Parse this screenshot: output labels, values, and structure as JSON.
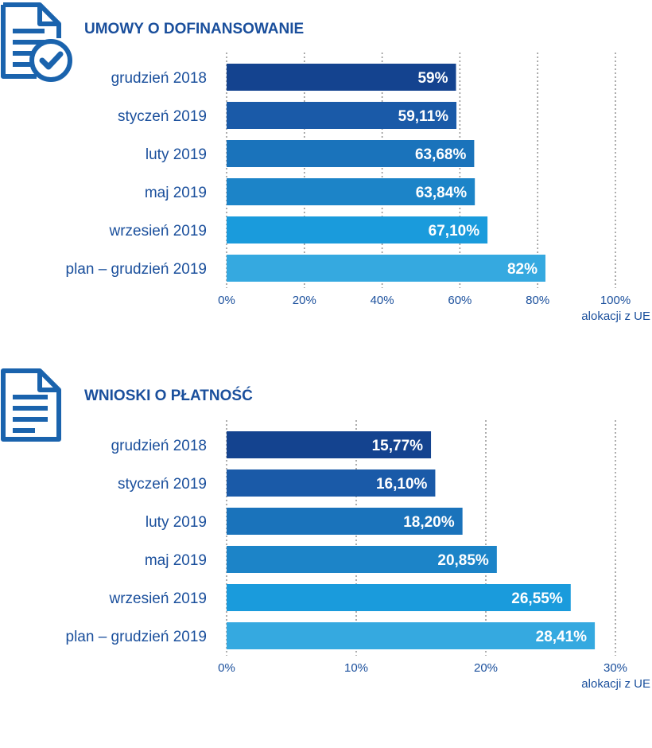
{
  "colors": {
    "title": "#1a4f9c",
    "labels": "#1a4f9c",
    "grid": "#8a8a8a",
    "bars": [
      "#14438f",
      "#1a5aa8",
      "#1a73bb",
      "#1c84c8",
      "#1a9bdc",
      "#35a9e0"
    ]
  },
  "sections": [
    {
      "title": "UMOWY O DOFINANSOWANIE",
      "icon": "document-check-icon"
    },
    {
      "title": "WNIOSKI O PŁATNOŚĆ",
      "icon": "document-icon"
    }
  ],
  "chart_data": [
    {
      "type": "bar",
      "orientation": "horizontal",
      "title": "UMOWY O DOFINANSOWANIE",
      "categories": [
        "grudzień 2018",
        "styczeń 2019",
        "luty 2019",
        "maj 2019",
        "wrzesień 2019",
        "plan – grudzień 2019"
      ],
      "values": [
        59,
        59.11,
        63.68,
        63.84,
        67.1,
        82
      ],
      "value_labels": [
        "59%",
        "59,11%",
        "63,68%",
        "63,84%",
        "67,10%",
        "82%"
      ],
      "xlim": [
        0,
        100
      ],
      "ticks": [
        0,
        20,
        40,
        60,
        80,
        100
      ],
      "tick_labels": [
        "0%",
        "20%",
        "40%",
        "60%",
        "80%",
        "100%"
      ],
      "xlabel": "alokacji z UE",
      "grid": true
    },
    {
      "type": "bar",
      "orientation": "horizontal",
      "title": "WNIOSKI O PŁATNOŚĆ",
      "categories": [
        "grudzień 2018",
        "styczeń 2019",
        "luty 2019",
        "maj 2019",
        "wrzesień 2019",
        "plan – grudzień 2019"
      ],
      "values": [
        15.77,
        16.1,
        18.2,
        20.85,
        26.55,
        28.41
      ],
      "value_labels": [
        "15,77%",
        "16,10%",
        "18,20%",
        "20,85%",
        "26,55%",
        "28,41%"
      ],
      "xlim": [
        0,
        30
      ],
      "ticks": [
        0,
        10,
        20,
        30
      ],
      "tick_labels": [
        "0%",
        "10%",
        "20%",
        "30%"
      ],
      "xlabel": "alokacji z UE",
      "grid": true
    }
  ]
}
